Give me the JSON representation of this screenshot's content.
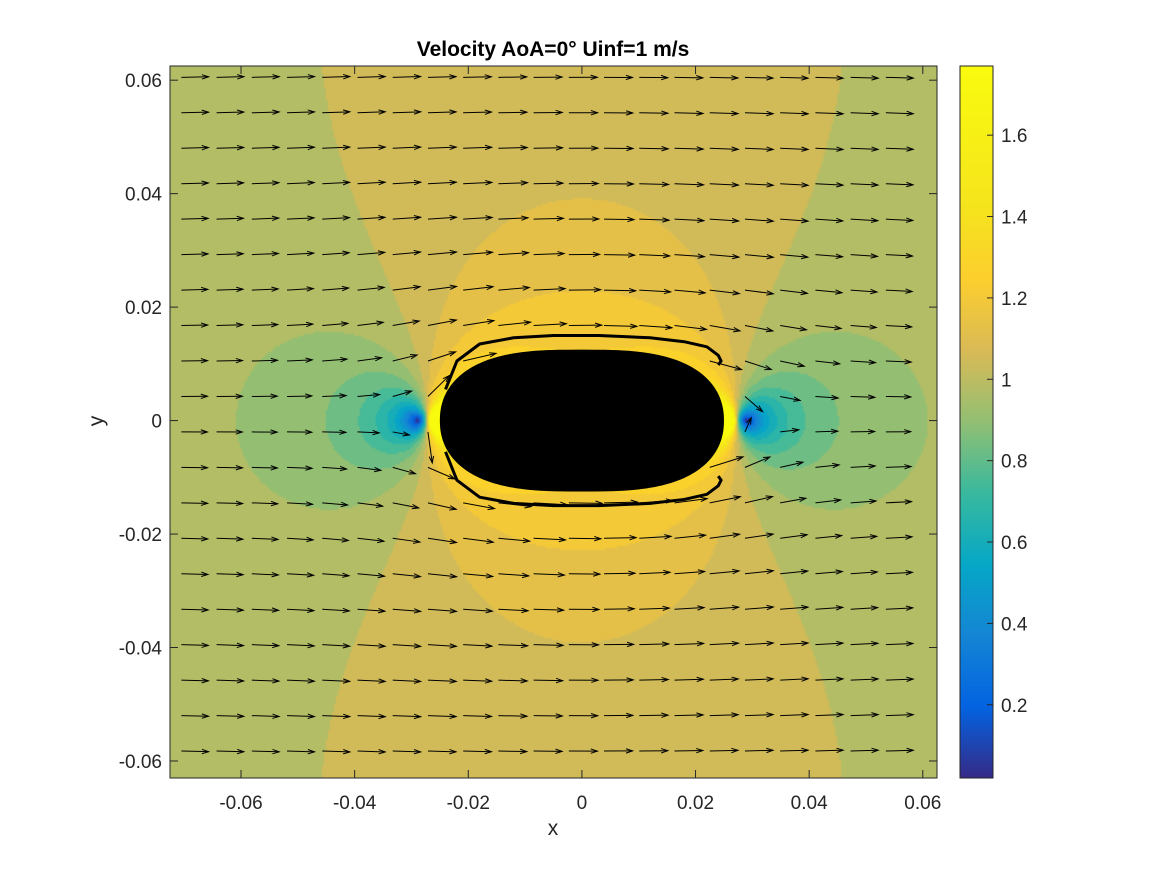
{
  "chart_data": {
    "type": "heatmap",
    "title": "Velocity AoA=0° Uinf=1 m/s",
    "xlabel": "x",
    "ylabel": "y",
    "xlim": [
      -0.0725,
      0.0625
    ],
    "ylim": [
      -0.063,
      0.0625
    ],
    "xticks": [
      -0.06,
      -0.04,
      -0.02,
      0,
      0.02,
      0.04,
      0.06
    ],
    "yticks": [
      -0.06,
      -0.04,
      -0.02,
      0,
      0.02,
      0.04,
      0.06
    ],
    "xticklabels": [
      "-0.06",
      "-0.04",
      "-0.02",
      "0",
      "0.02",
      "0.04",
      "0.06"
    ],
    "yticklabels": [
      "-0.06",
      "-0.04",
      "-0.02",
      "0",
      "0.02",
      "0.04",
      "0.06"
    ],
    "colorbar": {
      "range": [
        0.02,
        1.77
      ],
      "ticks": [
        0.2,
        0.4,
        0.6,
        0.8,
        1,
        1.2,
        1.4,
        1.6
      ],
      "ticklabels": [
        "0.2",
        "0.4",
        "0.6",
        "0.8",
        "1",
        "1.2",
        "1.4",
        "1.6"
      ],
      "colormap": "parula"
    },
    "field": {
      "quantity": "velocity magnitude",
      "free_stream": 1,
      "angle_of_attack_deg": 0
    },
    "body": {
      "shape": "rounded slab",
      "x_range": [
        -0.025,
        0.025
      ],
      "y_range": [
        -0.0125,
        0.0125
      ],
      "color": "#000000"
    },
    "streamlines": [
      {
        "x": [
          -0.024,
          -0.022,
          -0.018,
          -0.012,
          -0.005,
          0.003,
          0.012,
          0.018,
          0.022,
          0.024,
          0.0245,
          0.024
        ],
        "y": [
          0.0055,
          0.0105,
          0.0135,
          0.0146,
          0.015,
          0.015,
          0.0146,
          0.0139,
          0.013,
          0.0115,
          0.0105,
          0.0098
        ]
      },
      {
        "x": [
          -0.024,
          -0.022,
          -0.018,
          -0.012,
          -0.005,
          0.003,
          0.012,
          0.018,
          0.022,
          0.024,
          0.0245,
          0.024
        ],
        "y": [
          -0.0055,
          -0.0105,
          -0.0135,
          -0.0146,
          -0.015,
          -0.015,
          -0.0146,
          -0.0139,
          -0.013,
          -0.0115,
          -0.0105,
          -0.0098
        ]
      }
    ],
    "quiver": {
      "x_start": -0.0705,
      "x_step": 0.0062,
      "nx": 21,
      "y_start": 0.0605,
      "y_step": -0.00625,
      "ny": 21,
      "scale": 0.0048
    },
    "grid": false
  }
}
